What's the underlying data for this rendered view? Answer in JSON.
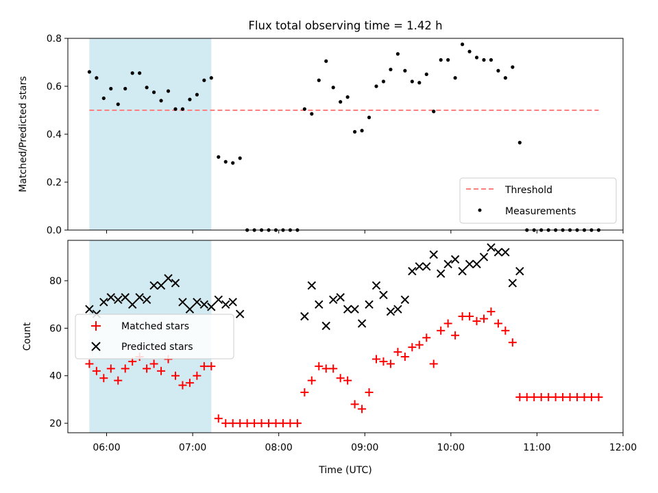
{
  "chart_data": [
    {
      "type": "scatter",
      "title": "Flux total observing time = 1.42 h",
      "xlabel": "",
      "ylabel": "Matched/Predicted stars",
      "ylim": [
        0,
        0.8
      ],
      "yticks": [
        "0.0",
        "0.2",
        "0.4",
        "0.6",
        "0.8"
      ],
      "xlim": [
        "05:33",
        "12:00"
      ],
      "grid": false,
      "legend_position": "lower-right",
      "shaded_interval": [
        "05:48",
        "07:13"
      ],
      "shaded_color": "#add8e6",
      "threshold": {
        "name": "Threshold",
        "value": 0.5,
        "x_range": [
          "05:48",
          "11:43"
        ],
        "color": "#ff7f7f"
      },
      "series": [
        {
          "name": "Measurements",
          "color": "#000000",
          "marker": "dot",
          "x": [
            "05:48",
            "05:53",
            "05:58",
            "06:03",
            "06:08",
            "06:13",
            "06:18",
            "06:23",
            "06:28",
            "06:33",
            "06:38",
            "06:43",
            "06:48",
            "06:53",
            "06:58",
            "07:03",
            "07:08",
            "07:13",
            "07:18",
            "07:23",
            "07:28",
            "07:33",
            "07:38",
            "07:43",
            "07:48",
            "07:53",
            "07:58",
            "08:03",
            "08:08",
            "08:13",
            "08:18",
            "08:23",
            "08:28",
            "08:33",
            "08:38",
            "08:43",
            "08:48",
            "08:53",
            "08:58",
            "09:03",
            "09:08",
            "09:13",
            "09:18",
            "09:23",
            "09:28",
            "09:33",
            "09:38",
            "09:43",
            "09:48",
            "09:53",
            "09:58",
            "10:03",
            "10:08",
            "10:13",
            "10:18",
            "10:23",
            "10:28",
            "10:33",
            "10:38",
            "10:43",
            "10:48",
            "10:53",
            "10:58",
            "11:03",
            "11:08",
            "11:13",
            "11:18",
            "11:23",
            "11:28",
            "11:33",
            "11:38",
            "11:43"
          ],
          "y": [
            0.66,
            0.635,
            0.55,
            0.59,
            0.525,
            0.59,
            0.655,
            0.655,
            0.595,
            0.575,
            0.54,
            0.58,
            0.505,
            0.505,
            0.545,
            0.565,
            0.625,
            0.635,
            0.305,
            0.285,
            0.28,
            0.3,
            0,
            0,
            0,
            0,
            0,
            0,
            0,
            0,
            0.505,
            0.485,
            0.625,
            0.705,
            0.595,
            0.535,
            0.555,
            0.41,
            0.415,
            0.47,
            0.6,
            0.62,
            0.67,
            0.735,
            0.665,
            0.62,
            0.615,
            0.65,
            0.495,
            0.71,
            0.71,
            0.635,
            0.775,
            0.745,
            0.72,
            0.71,
            0.71,
            0.665,
            0.635,
            0.68,
            0.365,
            0,
            0,
            0,
            0,
            0,
            0,
            0,
            0,
            0,
            0,
            0
          ]
        }
      ]
    },
    {
      "type": "scatter",
      "title": "",
      "xlabel": "Time (UTC)",
      "ylabel": "Count",
      "ylim": [
        16,
        97
      ],
      "yticks": [
        "20",
        "40",
        "60",
        "80"
      ],
      "xlim": [
        "05:33",
        "12:00"
      ],
      "xticks": [
        "06:00",
        "07:00",
        "08:00",
        "09:00",
        "10:00",
        "11:00",
        "12:00"
      ],
      "grid": false,
      "legend_position": "center-left",
      "shaded_interval": [
        "05:48",
        "07:13"
      ],
      "shaded_color": "#add8e6",
      "series": [
        {
          "name": "Matched stars",
          "color": "#ff0000",
          "marker": "plus",
          "x": [
            "05:48",
            "05:53",
            "05:58",
            "06:03",
            "06:08",
            "06:13",
            "06:18",
            "06:23",
            "06:28",
            "06:33",
            "06:38",
            "06:43",
            "06:48",
            "06:53",
            "06:58",
            "07:03",
            "07:08",
            "07:13",
            "07:18",
            "07:23",
            "07:28",
            "07:33",
            "07:38",
            "07:43",
            "07:48",
            "07:53",
            "07:58",
            "08:03",
            "08:08",
            "08:13",
            "08:18",
            "08:23",
            "08:28",
            "08:33",
            "08:38",
            "08:43",
            "08:48",
            "08:53",
            "08:58",
            "09:03",
            "09:08",
            "09:13",
            "09:18",
            "09:23",
            "09:28",
            "09:33",
            "09:38",
            "09:43",
            "09:48",
            "09:53",
            "09:58",
            "10:03",
            "10:08",
            "10:13",
            "10:18",
            "10:23",
            "10:28",
            "10:33",
            "10:38",
            "10:43",
            "10:48",
            "10:53",
            "10:58",
            "11:03",
            "11:08",
            "11:13",
            "11:18",
            "11:23",
            "11:28",
            "11:33",
            "11:38",
            "11:43"
          ],
          "y": [
            45,
            42,
            39,
            43,
            38,
            43,
            46,
            48,
            43,
            45,
            42,
            47,
            40,
            36,
            37,
            40,
            44,
            44,
            22,
            20,
            20,
            20,
            20,
            20,
            20,
            20,
            20,
            20,
            20,
            20,
            33,
            38,
            44,
            43,
            43,
            39,
            38,
            28,
            26,
            33,
            47,
            46,
            45,
            50,
            48,
            52,
            53,
            56,
            45,
            59,
            62,
            57,
            65,
            65,
            63,
            64,
            67,
            62,
            59,
            54,
            31,
            31,
            31,
            31,
            31,
            31,
            31,
            31,
            31,
            31,
            31,
            31
          ]
        },
        {
          "name": "Predicted stars",
          "color": "#000000",
          "marker": "x",
          "x": [
            "05:48",
            "05:53",
            "05:58",
            "06:03",
            "06:08",
            "06:13",
            "06:18",
            "06:23",
            "06:28",
            "06:33",
            "06:38",
            "06:43",
            "06:48",
            "06:53",
            "06:58",
            "07:03",
            "07:08",
            "07:13",
            "07:18",
            "07:23",
            "07:28",
            "07:33",
            "08:18",
            "08:23",
            "08:28",
            "08:33",
            "08:38",
            "08:43",
            "08:48",
            "08:53",
            "08:58",
            "09:03",
            "09:08",
            "09:13",
            "09:18",
            "09:23",
            "09:28",
            "09:33",
            "09:38",
            "09:43",
            "09:48",
            "09:53",
            "09:58",
            "10:03",
            "10:08",
            "10:13",
            "10:18",
            "10:23",
            "10:28",
            "10:33",
            "10:38",
            "10:43",
            "10:48"
          ],
          "y": [
            68,
            66,
            71,
            73,
            72,
            73,
            70,
            73,
            72,
            78,
            78,
            81,
            79,
            71,
            68,
            71,
            70,
            69,
            72,
            70,
            71,
            66,
            65,
            78,
            70,
            61,
            72,
            73,
            68,
            68,
            62,
            70,
            78,
            74,
            67,
            68,
            72,
            84,
            86,
            86,
            91,
            83,
            87,
            89,
            84,
            87,
            87,
            90,
            94,
            92,
            92,
            79,
            84
          ]
        }
      ]
    }
  ]
}
